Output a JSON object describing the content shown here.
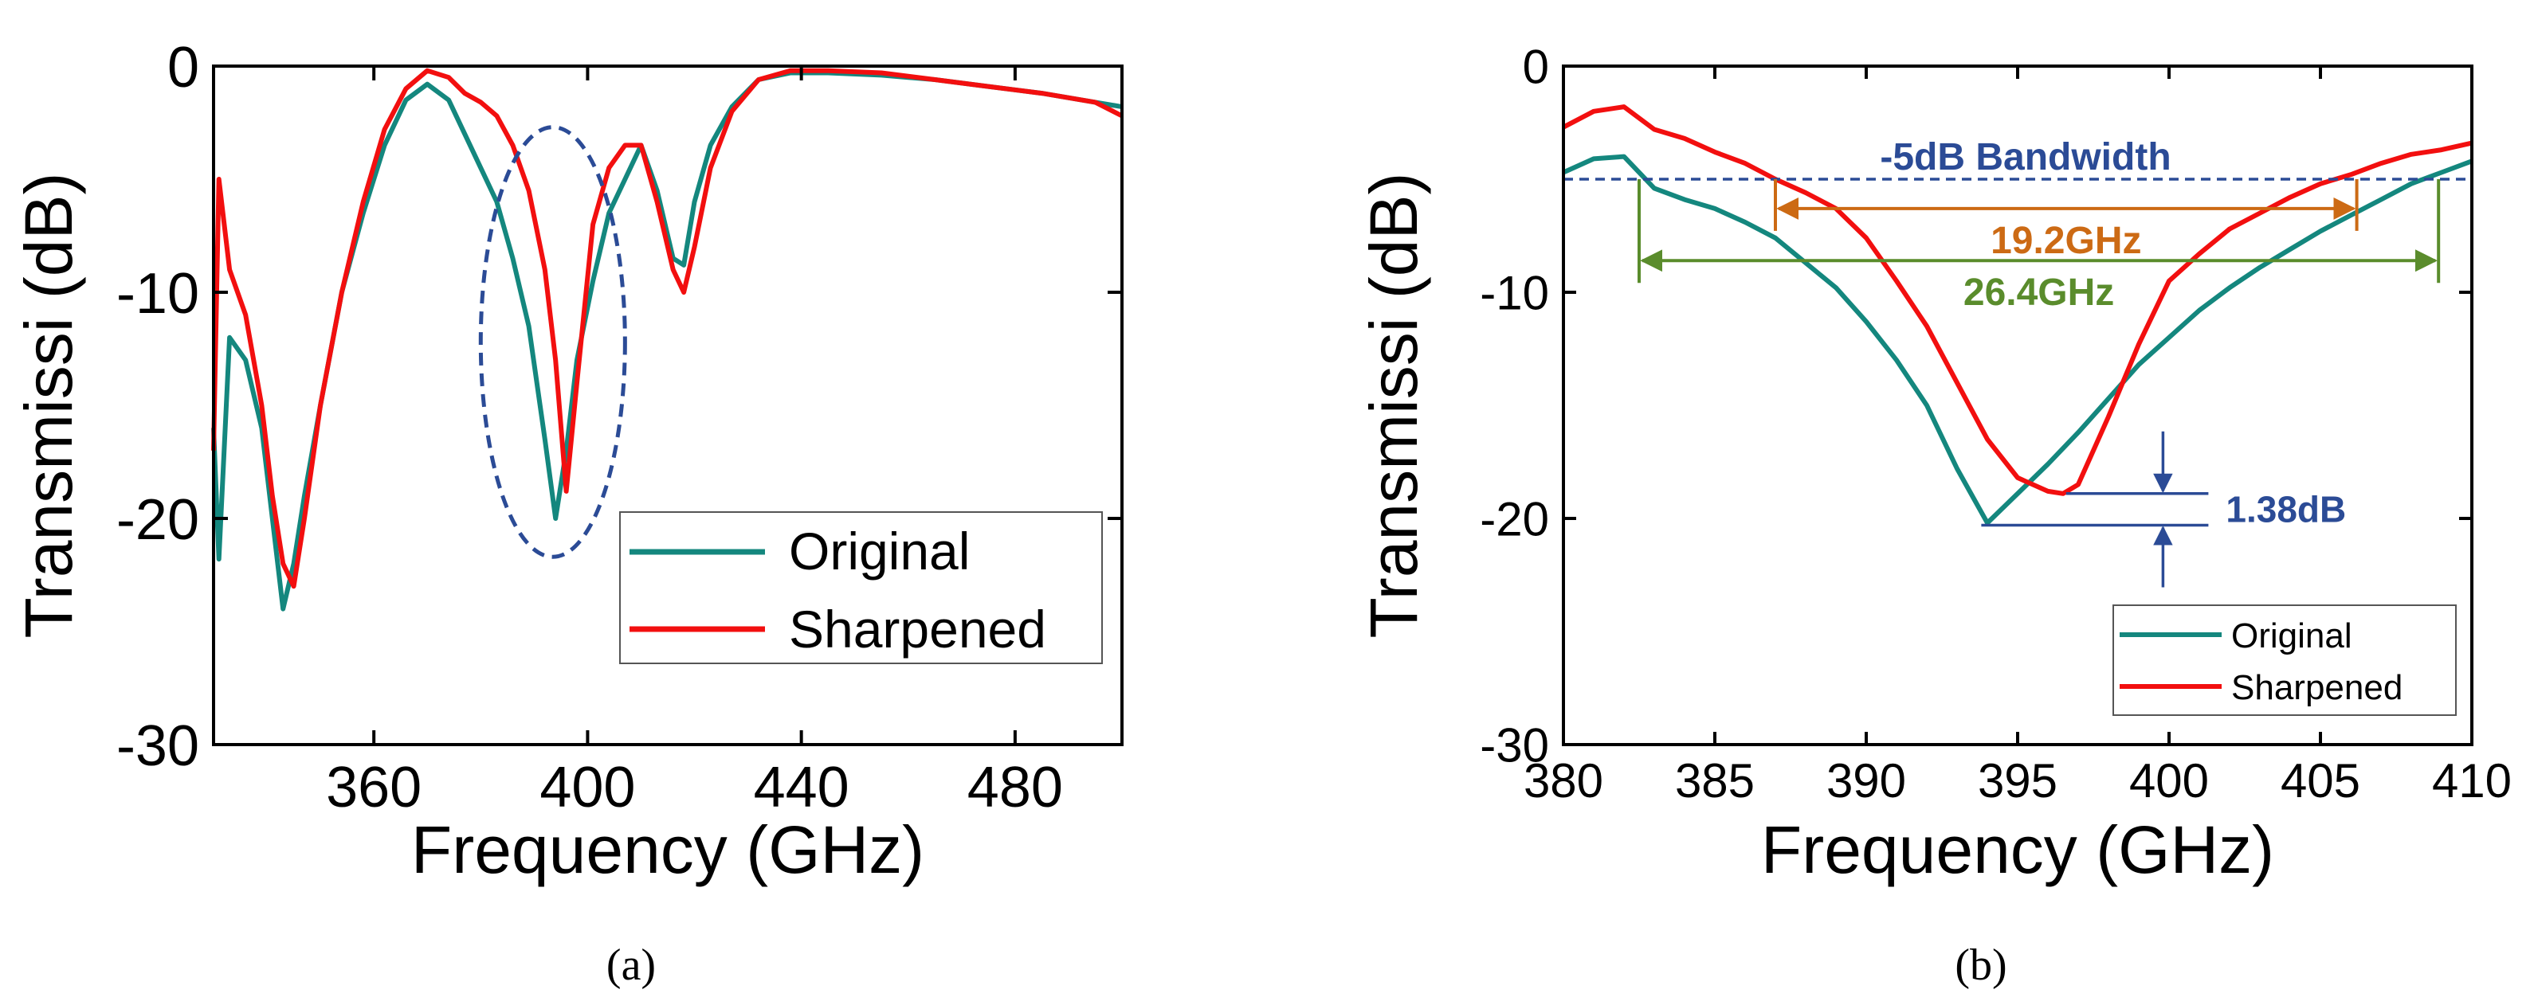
{
  "colors": {
    "original": "#14877e",
    "sharpened": "#f20f0f",
    "ellipse": "#2b4b96",
    "annot_blue": "#2b4b96",
    "annot_orange": "#cc6a14",
    "annot_green": "#5a8c2c",
    "axis": "#000000"
  },
  "chart_data": [
    {
      "type": "line",
      "panel_label": "(a)",
      "title": "",
      "xlabel": "Frequency (GHz)",
      "ylabel": "Transmissi (dB)",
      "xlim": [
        330,
        500
      ],
      "ylim": [
        -30,
        0
      ],
      "xticks": [
        360,
        400,
        440,
        480
      ],
      "xtick_labels": [
        "360",
        "400",
        "440",
        "480"
      ],
      "yticks": [
        0,
        -10,
        -20,
        -30
      ],
      "ytick_labels": [
        "0",
        "-10",
        "-20",
        "-30"
      ],
      "legend_position": "bottom-right",
      "series": [
        {
          "name": "Original",
          "color_key": "original",
          "x": [
            330,
            331,
            333,
            336,
            339,
            341,
            343,
            345,
            347,
            350,
            354,
            358,
            362,
            366,
            370,
            374,
            377,
            380,
            383,
            386,
            389,
            392,
            394,
            396,
            398,
            401,
            404,
            407,
            410,
            413,
            416,
            418,
            420,
            423,
            427,
            432,
            438,
            445,
            455,
            465,
            475,
            485,
            495,
            500
          ],
          "y": [
            -16,
            -21.8,
            -12,
            -13,
            -16,
            -20,
            -24,
            -22,
            -19,
            -15,
            -10,
            -6.5,
            -3.5,
            -1.5,
            -0.8,
            -1.5,
            -3,
            -4.5,
            -6,
            -8.5,
            -11.5,
            -16.5,
            -20,
            -17,
            -13,
            -9.5,
            -6.5,
            -5,
            -3.5,
            -5.5,
            -8.5,
            -8.8,
            -6,
            -3.5,
            -1.8,
            -0.6,
            -0.3,
            -0.3,
            -0.4,
            -0.6,
            -0.9,
            -1.2,
            -1.6,
            -1.8
          ]
        },
        {
          "name": "Sharpened",
          "color_key": "sharpened",
          "x": [
            330,
            331,
            333,
            336,
            339,
            341,
            343,
            345,
            347,
            350,
            354,
            358,
            362,
            366,
            370,
            374,
            377,
            380,
            383,
            386,
            389,
            392,
            394,
            396,
            398,
            401,
            404,
            407,
            410,
            413,
            416,
            418,
            420,
            423,
            427,
            432,
            438,
            445,
            455,
            465,
            475,
            485,
            495,
            500
          ],
          "y": [
            -17,
            -5,
            -9,
            -11,
            -15,
            -19,
            -22,
            -23,
            -20,
            -15,
            -10,
            -6,
            -2.8,
            -1,
            -0.2,
            -0.5,
            -1.2,
            -1.6,
            -2.2,
            -3.5,
            -5.5,
            -9,
            -13,
            -18.8,
            -14,
            -7,
            -4.5,
            -3.5,
            -3.5,
            -6,
            -9,
            -10,
            -8,
            -4.5,
            -2,
            -0.6,
            -0.2,
            -0.2,
            -0.3,
            -0.6,
            -0.9,
            -1.2,
            -1.6,
            -2.2
          ]
        }
      ],
      "annotations": [
        {
          "type": "dashed-ellipse",
          "center": [
            393.5,
            -12.2
          ],
          "radii": [
            13.5,
            9.5
          ]
        }
      ]
    },
    {
      "type": "line",
      "panel_label": "(b)",
      "title": "",
      "xlabel": "Frequency (GHz)",
      "ylabel": "Transmissi (dB)",
      "xlim": [
        380,
        410
      ],
      "ylim": [
        -30,
        0
      ],
      "xticks": [
        380,
        385,
        390,
        395,
        400,
        405,
        410
      ],
      "xtick_labels": [
        "380",
        "385",
        "390",
        "395",
        "400",
        "405",
        "410"
      ],
      "yticks": [
        0,
        -10,
        -20,
        -30
      ],
      "ytick_labels": [
        "0",
        "-10",
        "-20",
        "-30"
      ],
      "legend_position": "bottom-right",
      "series": [
        {
          "name": "Original",
          "color_key": "original",
          "x": [
            380,
            381,
            382,
            383,
            384,
            385,
            386,
            387,
            388,
            389,
            390,
            391,
            392,
            393,
            394,
            395,
            396,
            397,
            398,
            399,
            400,
            401,
            402,
            403,
            404,
            405,
            406,
            407,
            408,
            409,
            410
          ],
          "y": [
            -4.7,
            -4.1,
            -4.0,
            -5.4,
            -5.9,
            -6.3,
            -6.9,
            -7.6,
            -8.7,
            -9.8,
            -11.3,
            -13.0,
            -15.0,
            -17.8,
            -20.2,
            -18.9,
            -17.6,
            -16.2,
            -14.7,
            -13.2,
            -12.0,
            -10.8,
            -9.8,
            -8.9,
            -8.1,
            -7.3,
            -6.6,
            -5.9,
            -5.2,
            -4.7,
            -4.2
          ]
        },
        {
          "name": "Sharpened",
          "color_key": "sharpened",
          "x": [
            380,
            381,
            382,
            383,
            384,
            385,
            386,
            387,
            388,
            389,
            390,
            391,
            392,
            393,
            394,
            395,
            396,
            396.5,
            397,
            398,
            399,
            400,
            401,
            402,
            403,
            404,
            405,
            406,
            407,
            408,
            409,
            410
          ],
          "y": [
            -2.7,
            -2.0,
            -1.8,
            -2.8,
            -3.2,
            -3.8,
            -4.3,
            -5.0,
            -5.6,
            -6.3,
            -7.6,
            -9.5,
            -11.5,
            -14.0,
            -16.5,
            -18.2,
            -18.8,
            -18.9,
            -18.5,
            -15.5,
            -12.3,
            -9.5,
            -8.3,
            -7.2,
            -6.5,
            -5.8,
            -5.2,
            -4.8,
            -4.3,
            -3.9,
            -3.7,
            -3.4
          ]
        }
      ],
      "annotations": [
        {
          "type": "hline-dashed",
          "y": -5,
          "label": "-5dB Bandwidth",
          "color_key": "annot_blue"
        },
        {
          "type": "bracket",
          "x1": 387,
          "x2": 406.2,
          "y": -6.3,
          "label": "19.2GHz",
          "color_key": "annot_orange"
        },
        {
          "type": "bracket",
          "x1": 382.5,
          "x2": 408.9,
          "y": -8.6,
          "label": "26.4GHz",
          "color_key": "annot_green"
        },
        {
          "type": "difference",
          "y_top": -18.9,
          "y_bottom": -20.3,
          "label": "1.38dB",
          "color_key": "annot_blue"
        }
      ]
    }
  ]
}
